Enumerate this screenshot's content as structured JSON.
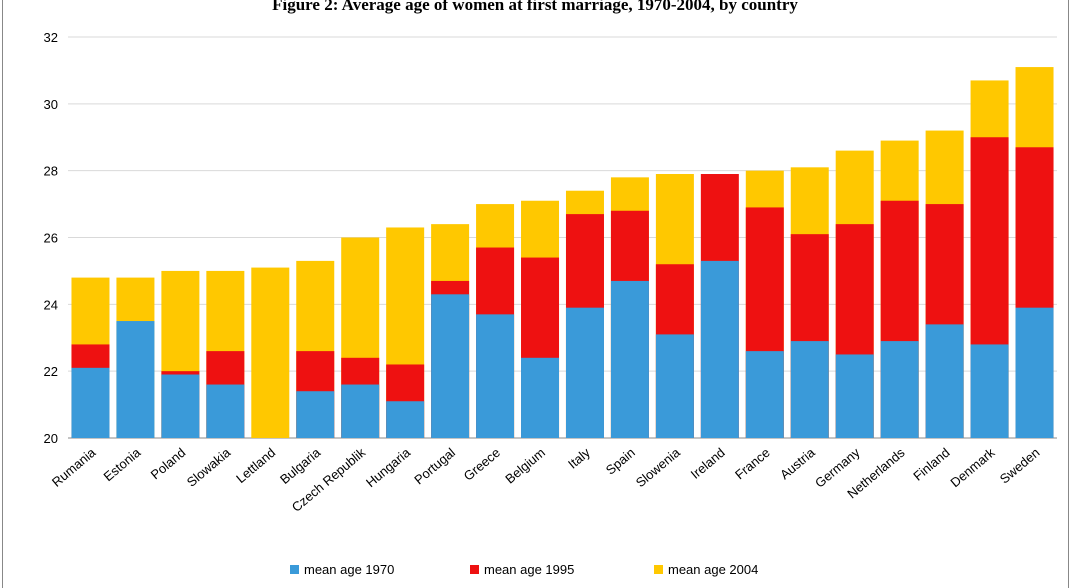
{
  "chart_data": {
    "type": "bar",
    "overlap": true,
    "title": "Figure 2: Average age of women at first marriage, 1970-2004, by country",
    "categories": [
      "Rumania",
      "Estonia",
      "Poland",
      "Slowakia",
      "Lettland",
      "Bulgaria",
      "Czech Republik",
      "Hungaria",
      "Portugal",
      "Greece",
      "Belgium",
      "Italy",
      "Spain",
      "Slowenia",
      "Ireland",
      "France",
      "Austria",
      "Germany",
      "Netherlands",
      "Finland",
      "Denmark",
      "Sweden"
    ],
    "series": [
      {
        "name": "mean age 1970",
        "color": "#3a9ad9",
        "values": [
          22.1,
          23.5,
          21.9,
          21.6,
          null,
          21.4,
          21.6,
          21.1,
          24.3,
          23.7,
          22.4,
          23.9,
          24.7,
          23.1,
          25.3,
          22.6,
          22.9,
          22.5,
          22.9,
          23.4,
          22.8,
          23.9
        ]
      },
      {
        "name": "mean age 1995",
        "color": "#ee1111",
        "values": [
          22.8,
          null,
          22.0,
          22.6,
          null,
          22.6,
          22.4,
          22.2,
          24.7,
          25.7,
          25.4,
          26.7,
          26.8,
          25.2,
          27.9,
          26.9,
          26.1,
          26.4,
          27.1,
          27.0,
          29.0,
          28.7
        ]
      },
      {
        "name": "mean age 2004",
        "color": "#ffc800",
        "values": [
          24.8,
          24.8,
          25.0,
          25.0,
          25.1,
          25.3,
          26.0,
          26.3,
          26.4,
          27.0,
          27.1,
          27.4,
          27.8,
          27.9,
          null,
          28.0,
          28.1,
          28.6,
          28.9,
          29.2,
          30.7,
          31.1
        ]
      }
    ],
    "ylim": [
      20,
      32
    ],
    "yticks": [
      20,
      22,
      24,
      26,
      28,
      30,
      32
    ],
    "grid": true,
    "legend": "bottom"
  }
}
